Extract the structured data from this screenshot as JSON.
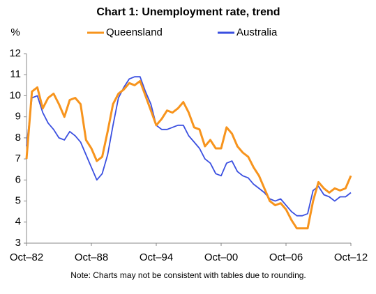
{
  "chart_data": {
    "type": "line",
    "title": "Chart 1: Unemployment rate, trend",
    "y_label": "%",
    "note": "Note: Charts may not be consistent with tables due to rounding.",
    "categories": [
      "Oct–82",
      null,
      null,
      null,
      null,
      null,
      null,
      null,
      null,
      null,
      null,
      null,
      "Oct–88",
      null,
      null,
      null,
      null,
      null,
      null,
      null,
      null,
      null,
      null,
      null,
      "Oct–94",
      null,
      null,
      null,
      null,
      null,
      null,
      null,
      null,
      null,
      null,
      null,
      "Oct–00",
      null,
      null,
      null,
      null,
      null,
      null,
      null,
      null,
      null,
      null,
      null,
      "Oct–06",
      null,
      null,
      null,
      null,
      null,
      null,
      null,
      null,
      null,
      null,
      null,
      "Oct–12"
    ],
    "series": [
      {
        "name": "Queensland",
        "color": "#f7941d",
        "values": [
          7.0,
          10.2,
          10.4,
          9.4,
          9.9,
          10.1,
          9.6,
          9.0,
          9.8,
          9.9,
          9.6,
          7.9,
          7.5,
          6.9,
          7.1,
          8.3,
          9.6,
          10.1,
          10.3,
          10.6,
          10.5,
          10.7,
          10.0,
          9.3,
          8.6,
          8.9,
          9.3,
          9.2,
          9.4,
          9.7,
          9.2,
          8.5,
          8.4,
          7.6,
          7.9,
          7.5,
          7.5,
          8.5,
          8.2,
          7.6,
          7.3,
          7.1,
          6.6,
          6.2,
          5.6,
          5.0,
          4.8,
          4.9,
          4.6,
          4.1,
          3.7,
          3.7,
          3.7,
          5.0,
          5.9,
          5.6,
          5.4,
          5.6,
          5.5,
          5.6,
          6.2
        ]
      },
      {
        "name": "Australia",
        "color": "#3a4fe0",
        "values": [
          7.6,
          9.9,
          10.0,
          9.2,
          8.7,
          8.4,
          8.0,
          7.9,
          8.3,
          8.1,
          7.8,
          7.2,
          6.6,
          6.0,
          6.3,
          7.2,
          8.6,
          9.9,
          10.4,
          10.8,
          10.9,
          10.9,
          10.2,
          9.6,
          8.6,
          8.4,
          8.4,
          8.5,
          8.6,
          8.6,
          8.1,
          7.8,
          7.5,
          7.0,
          6.8,
          6.3,
          6.2,
          6.8,
          6.9,
          6.4,
          6.2,
          6.1,
          5.8,
          5.6,
          5.4,
          5.1,
          5.0,
          5.1,
          4.8,
          4.5,
          4.3,
          4.3,
          4.4,
          5.5,
          5.7,
          5.3,
          5.2,
          5.0,
          5.2,
          5.2,
          5.4
        ]
      }
    ],
    "ylim": [
      3,
      12
    ],
    "yticks": [
      3,
      4,
      5,
      6,
      7,
      8,
      9,
      10,
      11,
      12
    ]
  }
}
